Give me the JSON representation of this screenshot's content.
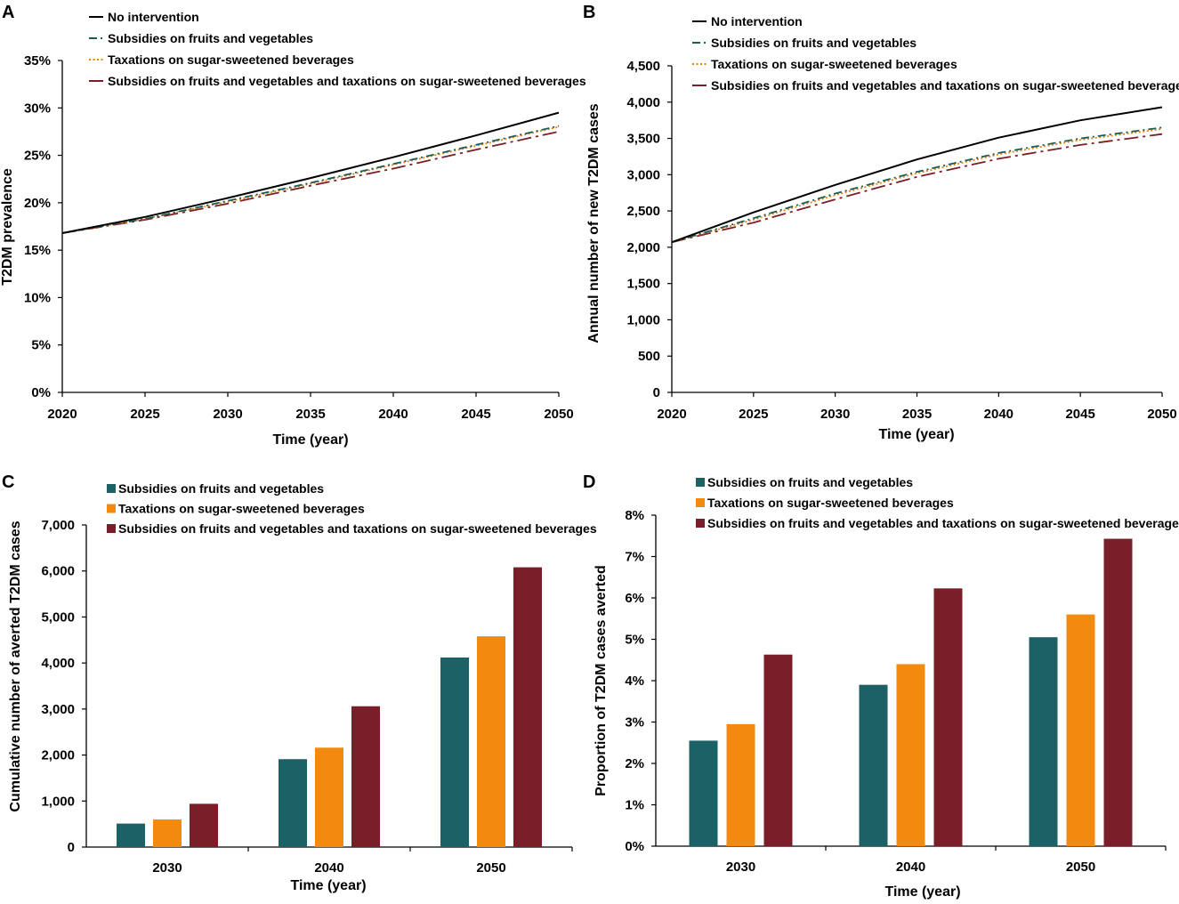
{
  "chart_data": [
    {
      "panel": "A",
      "type": "line",
      "xlabel": "Time (year)",
      "ylabel": "T2DM prevalence",
      "xlim": [
        2020,
        2050
      ],
      "ylim": [
        0,
        35
      ],
      "x_ticks": [
        "2020",
        "2025",
        "2030",
        "2035",
        "2040",
        "2045",
        "2050"
      ],
      "y_ticks": [
        "0%",
        "5%",
        "10%",
        "15%",
        "20%",
        "25%",
        "30%",
        "35%"
      ],
      "x": [
        2020,
        2025,
        2030,
        2035,
        2040,
        2045,
        2050
      ],
      "series": [
        {
          "name": "No intervention",
          "color": "#000000",
          "style": "solid",
          "values": [
            16.8,
            18.5,
            20.5,
            22.6,
            24.8,
            27.1,
            29.5
          ]
        },
        {
          "name": "Subsidies on fruits and vegetables",
          "color": "#1a5c5a",
          "style": "dashdot",
          "values": [
            16.8,
            18.3,
            20.2,
            22.1,
            24.1,
            26.1,
            28.1
          ]
        },
        {
          "name": "Taxations on sugar-sweetened beverages",
          "color": "#e8820c",
          "style": "dotted",
          "values": [
            16.8,
            18.3,
            20.1,
            22.0,
            24.0,
            26.0,
            28.0
          ]
        },
        {
          "name": "Subsidies on fruits and vegetables and taxations on sugar-sweetened beverages",
          "color": "#7a1e28",
          "style": "longdash",
          "values": [
            16.8,
            18.2,
            19.9,
            21.8,
            23.6,
            25.6,
            27.5
          ]
        }
      ]
    },
    {
      "panel": "B",
      "type": "line",
      "xlabel": "Time (year)",
      "ylabel": "Annual number of new T2DM cases",
      "xlim": [
        2020,
        2050
      ],
      "ylim": [
        0,
        4500
      ],
      "x_ticks": [
        "2020",
        "2025",
        "2030",
        "2035",
        "2040",
        "2045",
        "2050"
      ],
      "y_ticks": [
        "0",
        "500",
        "1,000",
        "1,500",
        "2,000",
        "2,500",
        "3,000",
        "3,500",
        "4,000",
        "4,500"
      ],
      "x": [
        2020,
        2025,
        2030,
        2035,
        2040,
        2045,
        2050
      ],
      "series": [
        {
          "name": "No intervention",
          "color": "#000000",
          "style": "solid",
          "values": [
            2070,
            2480,
            2860,
            3210,
            3510,
            3750,
            3930
          ]
        },
        {
          "name": "Subsidies on fruits and vegetables",
          "color": "#1a5c5a",
          "style": "dashdot",
          "values": [
            2070,
            2400,
            2740,
            3040,
            3300,
            3500,
            3650
          ]
        },
        {
          "name": "Taxations on sugar-sweetened beverages",
          "color": "#e8820c",
          "style": "dotted",
          "values": [
            2070,
            2380,
            2720,
            3020,
            3280,
            3480,
            3630
          ]
        },
        {
          "name": "Subsidies on fruits and vegetables and taxations on sugar-sweetened beverages",
          "color": "#7a1e28",
          "style": "longdash",
          "values": [
            2070,
            2340,
            2660,
            2970,
            3220,
            3410,
            3560
          ]
        }
      ]
    },
    {
      "panel": "C",
      "type": "bar",
      "xlabel": "Time (year)",
      "ylabel": "Cumulative number of averted T2DM cases",
      "ylim": [
        0,
        7000
      ],
      "y_ticks": [
        "0",
        "1,000",
        "2,000",
        "3,000",
        "4,000",
        "5,000",
        "6,000",
        "7,000"
      ],
      "categories": [
        "2030",
        "2040",
        "2050"
      ],
      "series": [
        {
          "name": "Subsidies on fruits and vegetables",
          "color": "#1c6165",
          "values": [
            510,
            1910,
            4120
          ]
        },
        {
          "name": "Taxations on sugar-sweetened beverages",
          "color": "#f28a10",
          "values": [
            600,
            2160,
            4580
          ]
        },
        {
          "name": "Subsidies on fruits and vegetables and taxations on sugar-sweetened beverages",
          "color": "#7a1f2a",
          "values": [
            940,
            3060,
            6080
          ]
        }
      ]
    },
    {
      "panel": "D",
      "type": "bar",
      "xlabel": "Time (year)",
      "ylabel": "Proportion of T2DM cases averted",
      "ylim": [
        0,
        8
      ],
      "y_ticks": [
        "0%",
        "1%",
        "2%",
        "3%",
        "4%",
        "5%",
        "6%",
        "7%",
        "8%"
      ],
      "categories": [
        "2030",
        "2040",
        "2050"
      ],
      "series": [
        {
          "name": "Subsidies on fruits and vegetables",
          "color": "#1c6165",
          "values": [
            2.55,
            3.9,
            5.05
          ]
        },
        {
          "name": "Taxations on sugar-sweetened beverages",
          "color": "#f28a10",
          "values": [
            2.95,
            4.4,
            5.6
          ]
        },
        {
          "name": "Subsidies on fruits and vegetables and taxations on sugar-sweetened beverages",
          "color": "#7a1f2a",
          "values": [
            4.63,
            6.23,
            7.43
          ]
        }
      ]
    }
  ]
}
